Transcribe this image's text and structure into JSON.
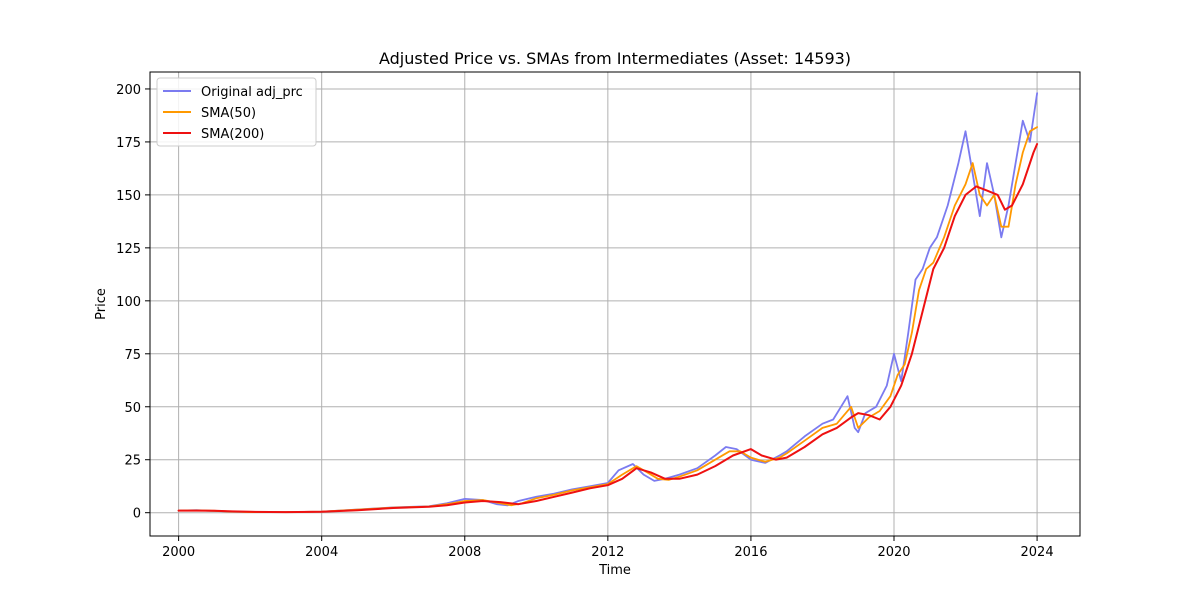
{
  "chart_data": {
    "type": "line",
    "title": "Adjusted Price vs. SMAs from Intermediates (Asset: 14593)",
    "xlabel": "Time",
    "ylabel": "Price",
    "xlim": [
      1999.2,
      2025.2
    ],
    "ylim": [
      -11,
      208
    ],
    "x_ticks": [
      2000,
      2004,
      2008,
      2012,
      2016,
      2020,
      2024
    ],
    "x_tick_labels": [
      "2000",
      "2004",
      "2008",
      "2012",
      "2016",
      "2020",
      "2024"
    ],
    "y_ticks": [
      0,
      25,
      50,
      75,
      100,
      125,
      150,
      175,
      200
    ],
    "y_tick_labels": [
      "0",
      "25",
      "50",
      "75",
      "100",
      "125",
      "150",
      "175",
      "200"
    ],
    "grid": true,
    "legend_position": "top-left",
    "series": [
      {
        "name": "Original adj_prc",
        "color": "#7b7bf0",
        "x": [
          2000.0,
          2000.5,
          2001.0,
          2001.5,
          2002.0,
          2003.0,
          2004.0,
          2005.0,
          2006.0,
          2007.0,
          2007.5,
          2008.0,
          2008.5,
          2008.9,
          2009.2,
          2009.5,
          2010.0,
          2010.5,
          2011.0,
          2011.5,
          2012.0,
          2012.3,
          2012.7,
          2013.0,
          2013.3,
          2013.6,
          2014.0,
          2014.5,
          2015.0,
          2015.3,
          2015.6,
          2016.0,
          2016.4,
          2016.8,
          2017.0,
          2017.5,
          2018.0,
          2018.3,
          2018.7,
          2018.9,
          2019.0,
          2019.2,
          2019.5,
          2019.8,
          2020.0,
          2020.2,
          2020.4,
          2020.6,
          2020.8,
          2021.0,
          2021.2,
          2021.5,
          2021.8,
          2022.0,
          2022.2,
          2022.4,
          2022.6,
          2022.8,
          2023.0,
          2023.2,
          2023.4,
          2023.6,
          2023.8,
          2024.0
        ],
        "y": [
          1.0,
          1.2,
          0.8,
          0.5,
          0.3,
          0.3,
          0.5,
          1.5,
          2.5,
          3.0,
          4.5,
          6.5,
          6.0,
          4.0,
          3.5,
          5.5,
          7.5,
          9.0,
          11.0,
          12.5,
          14.0,
          20.0,
          23.0,
          18.0,
          15.0,
          16.0,
          18.0,
          21.0,
          27.0,
          31.0,
          30.0,
          25.0,
          23.5,
          27.0,
          29.0,
          36.0,
          42.0,
          44.0,
          55.0,
          40.0,
          38.0,
          47.0,
          50.0,
          60.0,
          75.0,
          62.0,
          85.0,
          110.0,
          115.0,
          125.0,
          130.0,
          145.0,
          165.0,
          180.0,
          160.0,
          140.0,
          165.0,
          150.0,
          130.0,
          145.0,
          165.0,
          185.0,
          175.0,
          198.0
        ]
      },
      {
        "name": "SMA(50)",
        "color": "#ff9900",
        "x": [
          2000.0,
          2000.5,
          2001.0,
          2001.5,
          2002.0,
          2003.0,
          2004.0,
          2005.0,
          2006.0,
          2007.0,
          2007.5,
          2008.0,
          2008.5,
          2009.0,
          2009.3,
          2009.6,
          2010.0,
          2010.5,
          2011.0,
          2011.5,
          2012.0,
          2012.4,
          2012.8,
          2013.1,
          2013.4,
          2013.7,
          2014.0,
          2014.5,
          2015.0,
          2015.4,
          2015.7,
          2016.0,
          2016.4,
          2016.8,
          2017.0,
          2017.5,
          2018.0,
          2018.4,
          2018.8,
          2019.0,
          2019.3,
          2019.6,
          2019.9,
          2020.1,
          2020.3,
          2020.5,
          2020.7,
          2020.9,
          2021.1,
          2021.4,
          2021.7,
          2022.0,
          2022.2,
          2022.4,
          2022.6,
          2022.8,
          2023.0,
          2023.2,
          2023.4,
          2023.6,
          2023.8,
          2024.0
        ],
        "y": [
          1.0,
          1.1,
          0.9,
          0.5,
          0.3,
          0.3,
          0.5,
          1.4,
          2.4,
          2.9,
          4.0,
          5.5,
          6.0,
          4.5,
          3.5,
          4.5,
          6.8,
          8.5,
          10.5,
          12.0,
          13.5,
          18.0,
          22.0,
          19.0,
          16.0,
          15.5,
          17.0,
          20.0,
          25.0,
          29.0,
          29.0,
          26.0,
          24.0,
          26.0,
          28.0,
          34.0,
          40.0,
          42.0,
          50.0,
          40.0,
          45.0,
          48.0,
          55.0,
          65.0,
          70.0,
          85.0,
          105.0,
          115.0,
          118.0,
          130.0,
          145.0,
          155.0,
          165.0,
          150.0,
          145.0,
          150.0,
          135.0,
          135.0,
          155.0,
          170.0,
          180.0,
          182.0
        ]
      },
      {
        "name": "SMA(200)",
        "color": "#ee1111",
        "x": [
          2000.0,
          2000.5,
          2001.0,
          2001.5,
          2002.0,
          2003.0,
          2004.0,
          2005.0,
          2006.0,
          2007.0,
          2007.5,
          2008.0,
          2008.5,
          2009.0,
          2009.5,
          2010.0,
          2010.5,
          2011.0,
          2011.5,
          2012.0,
          2012.4,
          2012.8,
          2013.2,
          2013.6,
          2014.0,
          2014.5,
          2015.0,
          2015.5,
          2016.0,
          2016.3,
          2016.7,
          2017.0,
          2017.5,
          2018.0,
          2018.4,
          2018.8,
          2019.0,
          2019.3,
          2019.6,
          2019.9,
          2020.2,
          2020.5,
          2020.8,
          2021.1,
          2021.4,
          2021.7,
          2022.0,
          2022.3,
          2022.6,
          2022.9,
          2023.1,
          2023.3,
          2023.6,
          2023.9,
          2024.0
        ],
        "y": [
          1.0,
          1.0,
          0.9,
          0.6,
          0.4,
          0.3,
          0.4,
          1.2,
          2.2,
          2.8,
          3.5,
          4.8,
          5.5,
          5.0,
          4.0,
          5.5,
          7.5,
          9.5,
          11.5,
          13.0,
          16.0,
          21.0,
          19.0,
          16.0,
          16.0,
          18.0,
          22.0,
          27.0,
          30.0,
          27.0,
          25.0,
          26.0,
          31.0,
          37.0,
          40.0,
          45.0,
          47.0,
          46.0,
          44.0,
          50.0,
          60.0,
          75.0,
          95.0,
          115.0,
          125.0,
          140.0,
          150.0,
          154.0,
          152.0,
          150.0,
          143.0,
          145.0,
          155.0,
          170.0,
          174.0
        ]
      }
    ]
  }
}
